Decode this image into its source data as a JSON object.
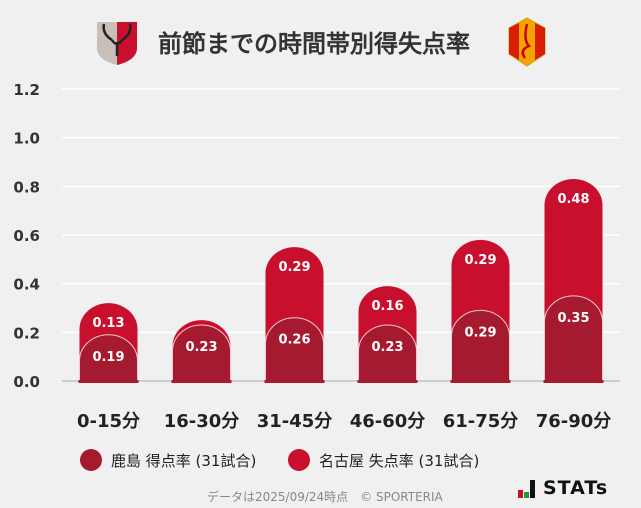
{
  "title": "前節までの時間帯別得失点率",
  "logos": {
    "left": "鹿島アントラーズ エンブレム",
    "right": "名古屋グランパス エンブレム"
  },
  "colors": {
    "kashima": "#a51a2e",
    "nagoya": "#c8102e",
    "background": "#f0f0f0",
    "grid": "#ffffff"
  },
  "chart_data": {
    "type": "bar",
    "stacked": true,
    "categories": [
      "0-15分",
      "16-30分",
      "31-45分",
      "46-60分",
      "61-75分",
      "76-90分"
    ],
    "series": [
      {
        "name": "鹿島 得点率 (31試合)",
        "values": [
          0.19,
          0.23,
          0.26,
          0.23,
          0.29,
          0.35
        ],
        "labels": [
          "0.19",
          "0.23",
          "0.26",
          "0.23",
          "0.29",
          "0.35"
        ]
      },
      {
        "name": "名古屋 失点率 (31試合)",
        "values": [
          0.13,
          0.02,
          0.29,
          0.16,
          0.29,
          0.48
        ],
        "labels": [
          "0.13",
          "",
          "0.29",
          "0.16",
          "0.29",
          "0.48"
        ]
      }
    ],
    "yticks": [
      "0.0",
      "0.2",
      "0.4",
      "0.6",
      "0.8",
      "1.0",
      "1.2"
    ],
    "ylim": [
      0,
      1.2
    ],
    "grid": true,
    "legend": "bottom"
  },
  "footer": {
    "note": "データは2025/09/24時点　© SPORTERIA",
    "brand": "STATs"
  }
}
